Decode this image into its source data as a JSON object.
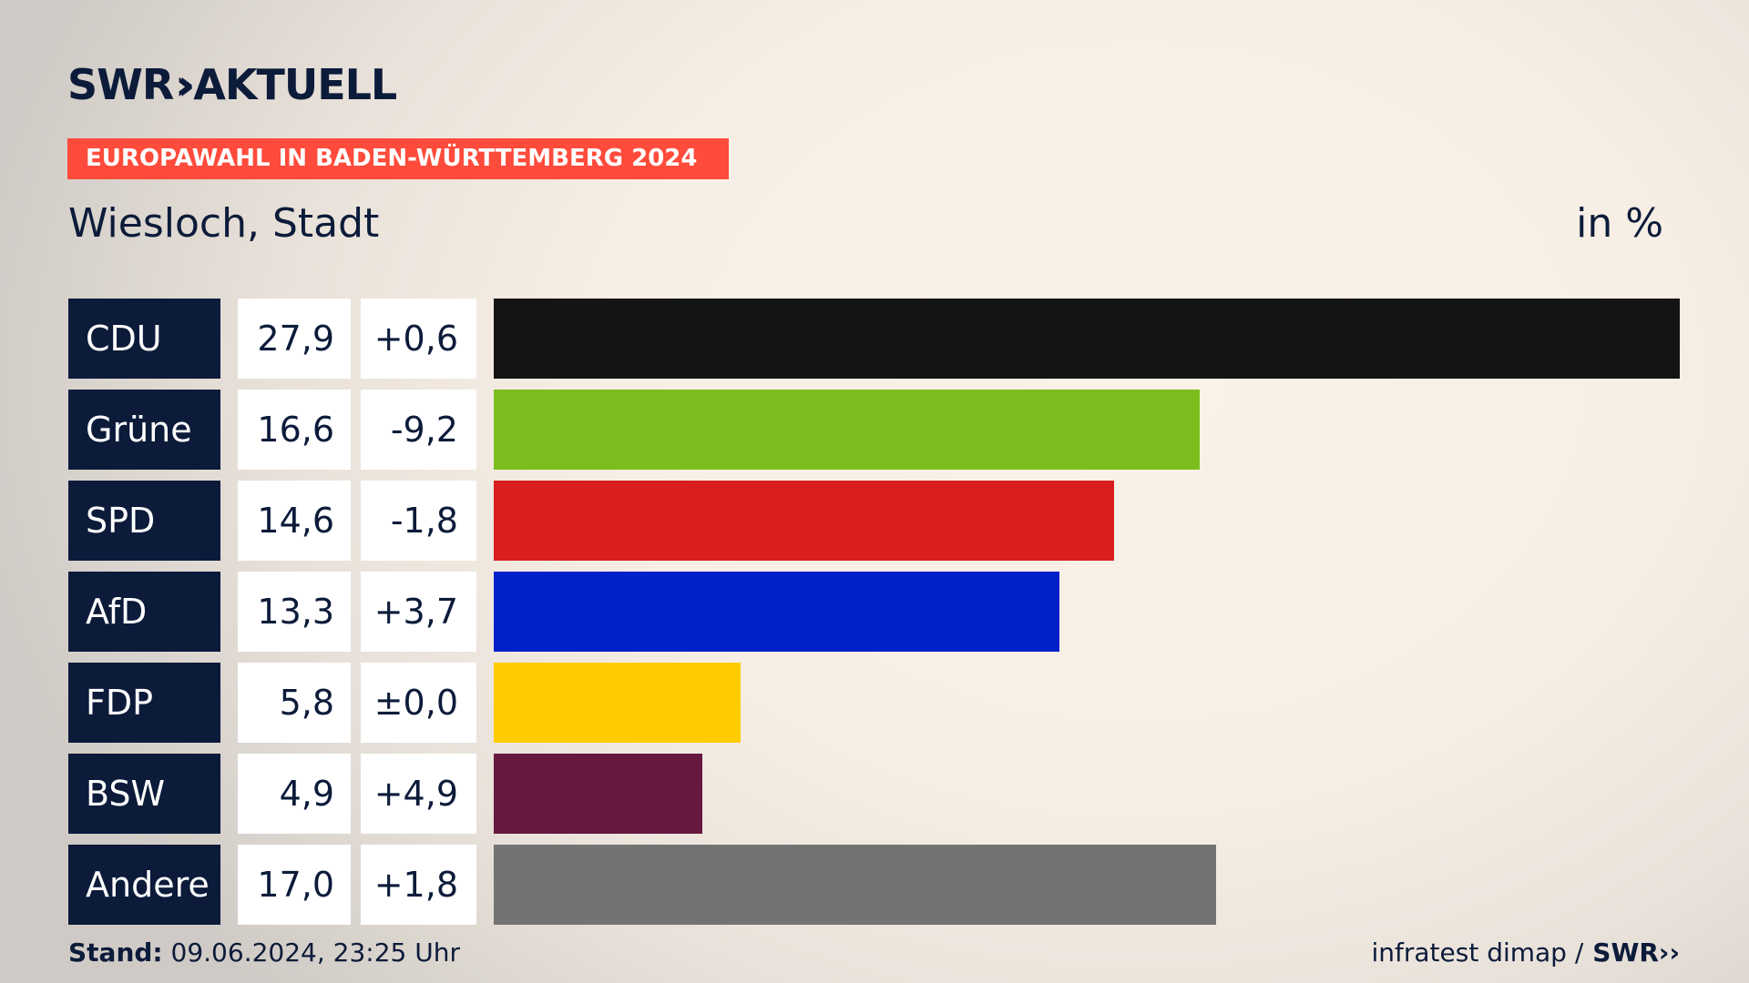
{
  "logo": {
    "brand": "SWR",
    "product": "AKTUELL"
  },
  "topic": "EUROPAWAHL IN BADEN-WÜRTTEMBERG 2024",
  "region": "Wiesloch, Stadt",
  "unit": "in %",
  "footer": {
    "stand_label": "Stand:",
    "stand_value": "09.06.2024, 23:25 Uhr",
    "source": "infratest dimap /",
    "brand": "SWR"
  },
  "chart_data": {
    "type": "bar",
    "orientation": "horizontal",
    "categories": [
      "CDU",
      "Grüne",
      "SPD",
      "AfD",
      "FDP",
      "BSW",
      "Andere"
    ],
    "values": [
      27.9,
      16.6,
      14.6,
      13.3,
      5.8,
      4.9,
      17.0
    ],
    "value_labels": [
      "27,9",
      "16,6",
      "14,6",
      "13,3",
      "5,8",
      "4,9",
      "17,0"
    ],
    "changes": [
      0.6,
      -9.2,
      -1.8,
      3.7,
      0.0,
      4.9,
      1.8
    ],
    "change_labels": [
      "+0,6",
      "-9,2",
      "-1,8",
      "+3,7",
      "±0,0",
      "+4,9",
      "+1,8"
    ],
    "colors": [
      "#141414",
      "#7bbd1c",
      "#d81e1e",
      "#0021c8",
      "#ffcc00",
      "#66183f",
      "#737373"
    ],
    "xlim": [
      0,
      27.9
    ],
    "grid": false
  }
}
